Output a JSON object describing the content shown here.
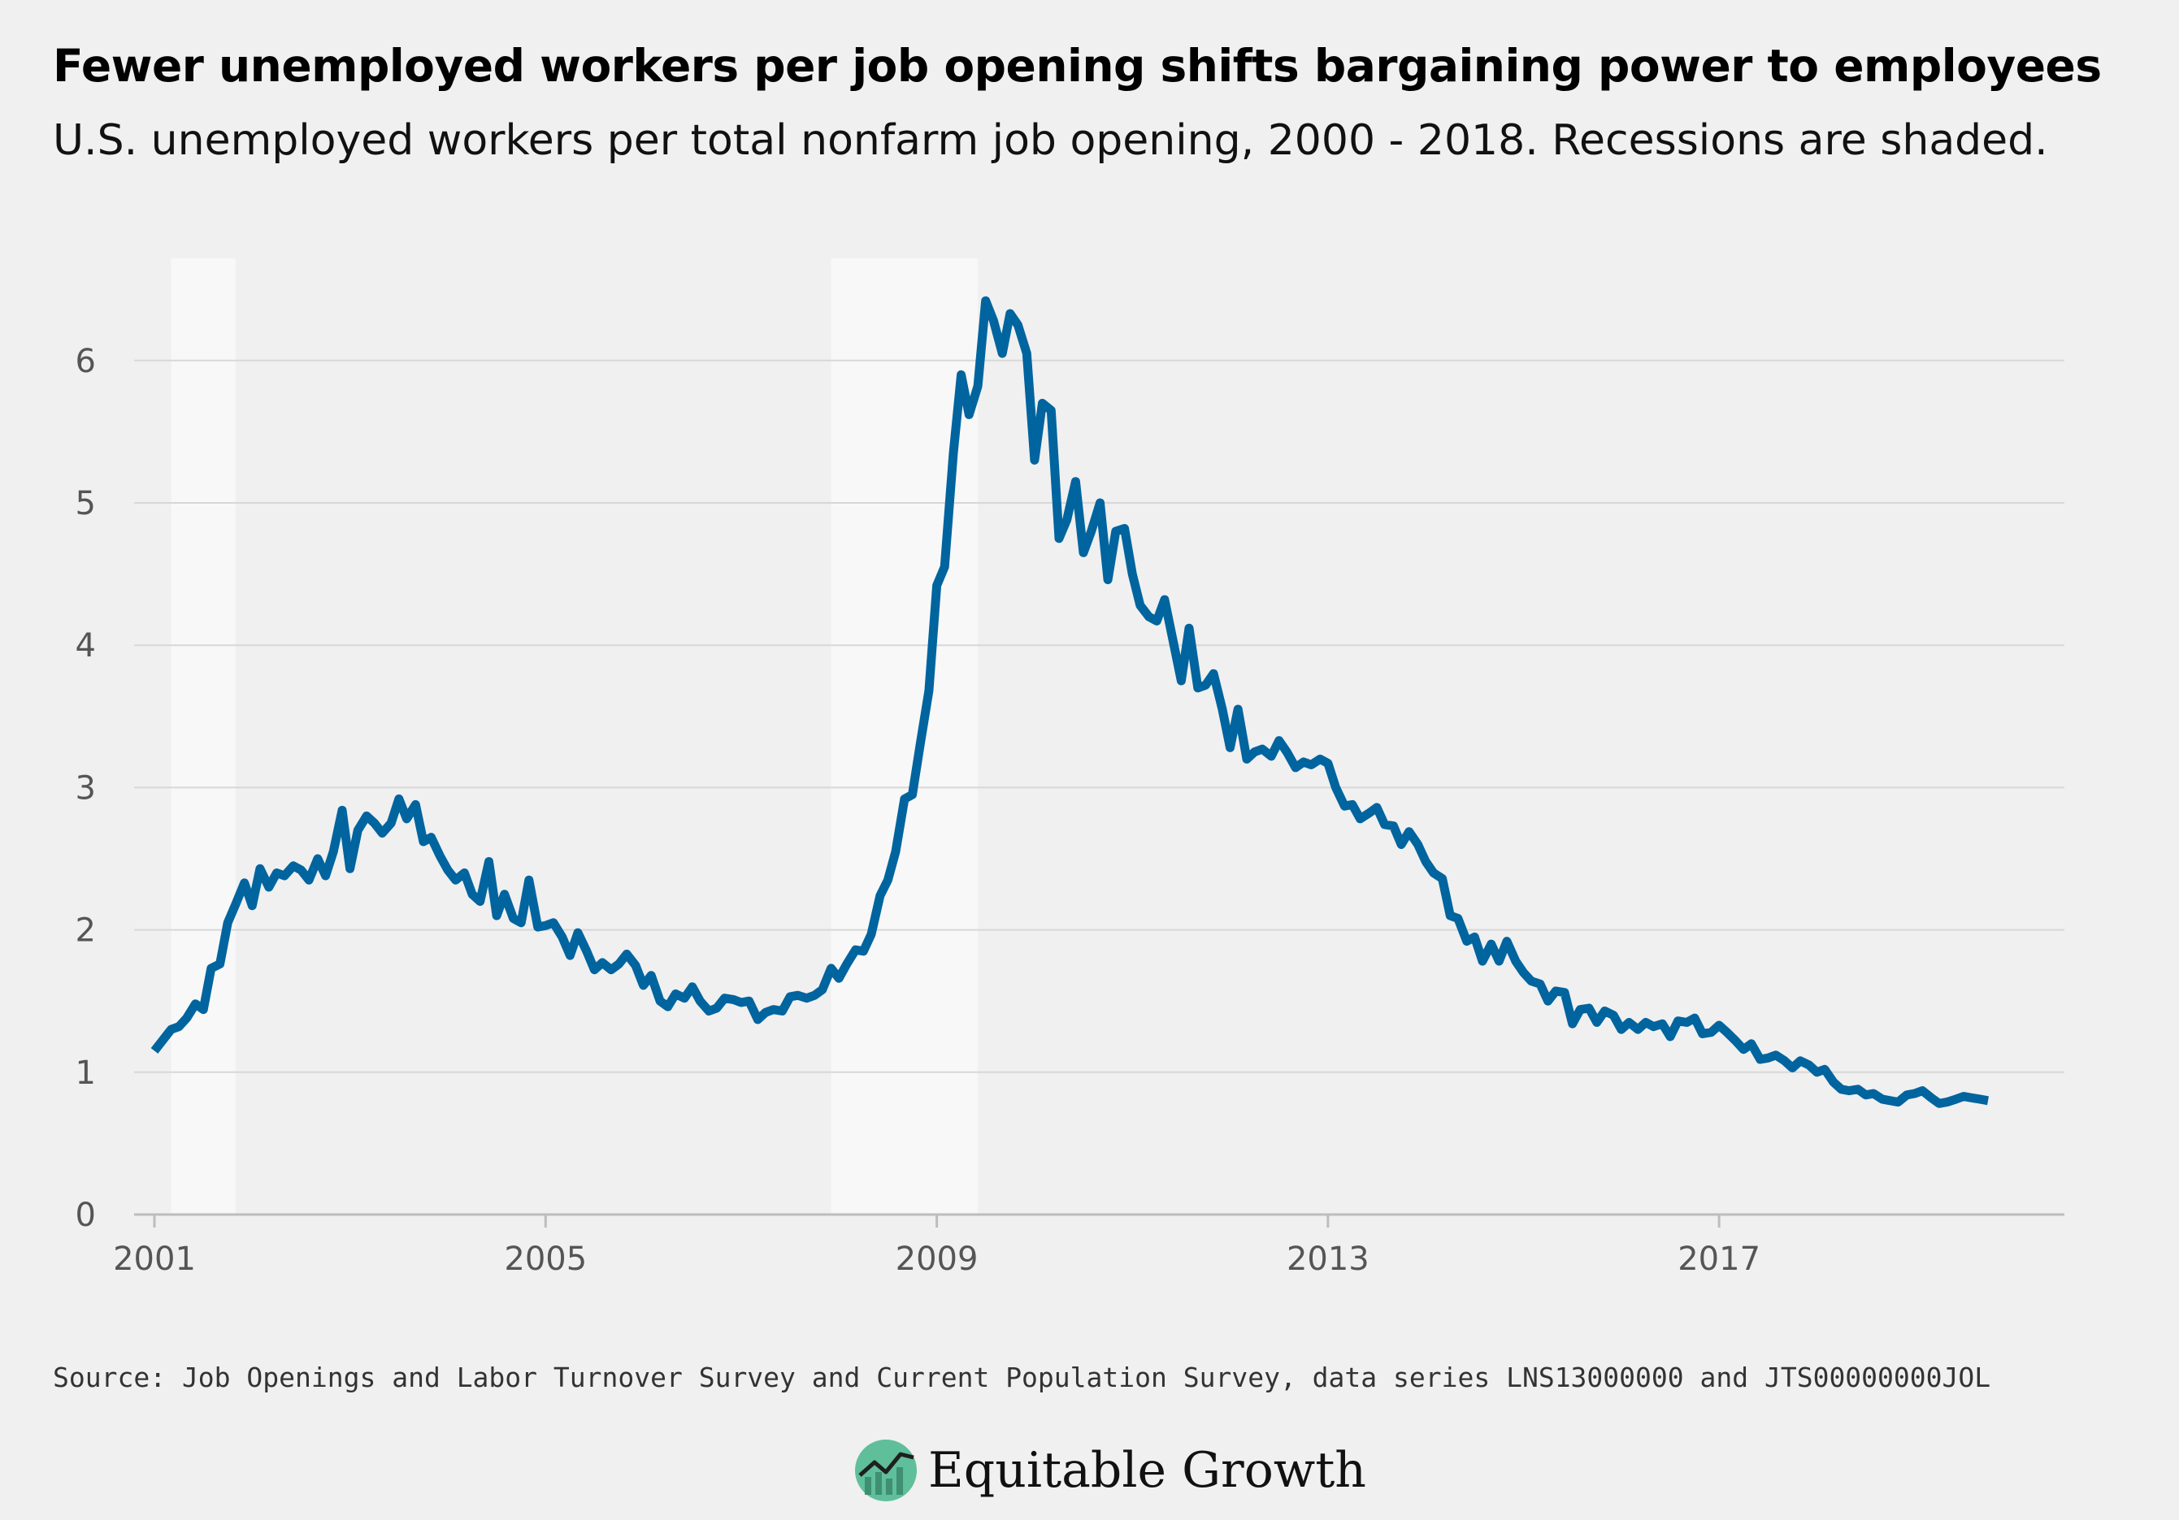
{
  "header": {
    "title": "Fewer unemployed workers per job opening shifts bargaining power to employees",
    "subtitle": "U.S. unemployed workers per total nonfarm job opening, 2000 - 2018. Recessions are shaded."
  },
  "footer": {
    "source": "Source: Job Openings and Labor Turnover Survey and Current Population Survey, data series LNS13000000 and JTS00000000JOL",
    "brand": "Equitable Growth"
  },
  "colors": {
    "line": "#00649f",
    "background": "#f0f0f0",
    "recession": "#f8f8f8",
    "grid": "#d7d7d7",
    "logo": "#5fbf9b"
  },
  "icons": {
    "brand_logo": "rising-line-chart-circle-icon"
  },
  "chart_data": {
    "type": "line",
    "title": "Fewer unemployed workers per job opening shifts bargaining power to employees",
    "subtitle": "U.S. unemployed workers per total nonfarm job opening, 2000 - 2018. Recessions are shaded.",
    "xlabel": "",
    "ylabel": "",
    "xlim": [
      2001.0,
      2019.7
    ],
    "ylim": [
      0,
      6.6
    ],
    "x_ticks": [
      2001,
      2005,
      2009,
      2013,
      2017
    ],
    "x_tick_labels": [
      "2001",
      "2005",
      "2009",
      "2013",
      "2017"
    ],
    "y_ticks": [
      0,
      1,
      2,
      3,
      4,
      5,
      6
    ],
    "y_tick_labels": [
      "0",
      "1",
      "2",
      "3",
      "4",
      "5",
      "6"
    ],
    "grid": "horizontal",
    "legend": "none",
    "recessions": [
      [
        2001.17,
        2001.83
      ],
      [
        2007.92,
        2009.42
      ]
    ],
    "series": [
      {
        "points": [
          [
            2001.0,
            1.15
          ],
          [
            2001.17,
            1.3
          ],
          [
            2001.25,
            1.32
          ],
          [
            2001.33,
            1.38
          ],
          [
            2001.42,
            1.48
          ],
          [
            2001.5,
            1.44
          ],
          [
            2001.58,
            1.73
          ],
          [
            2001.67,
            1.76
          ],
          [
            2001.75,
            2.05
          ],
          [
            2001.83,
            2.18
          ],
          [
            2001.92,
            2.33
          ],
          [
            2002.0,
            2.17
          ],
          [
            2002.08,
            2.43
          ],
          [
            2002.17,
            2.3
          ],
          [
            2002.25,
            2.4
          ],
          [
            2002.33,
            2.38
          ],
          [
            2002.42,
            2.45
          ],
          [
            2002.5,
            2.42
          ],
          [
            2002.58,
            2.35
          ],
          [
            2002.67,
            2.5
          ],
          [
            2002.75,
            2.38
          ],
          [
            2002.83,
            2.55
          ],
          [
            2002.92,
            2.84
          ],
          [
            2003.0,
            2.43
          ],
          [
            2003.08,
            2.7
          ],
          [
            2003.17,
            2.8
          ],
          [
            2003.25,
            2.75
          ],
          [
            2003.33,
            2.68
          ],
          [
            2003.42,
            2.75
          ],
          [
            2003.5,
            2.92
          ],
          [
            2003.58,
            2.78
          ],
          [
            2003.67,
            2.88
          ],
          [
            2003.75,
            2.62
          ],
          [
            2003.83,
            2.65
          ],
          [
            2003.92,
            2.52
          ],
          [
            2004.0,
            2.42
          ],
          [
            2004.08,
            2.35
          ],
          [
            2004.17,
            2.4
          ],
          [
            2004.25,
            2.25
          ],
          [
            2004.33,
            2.2
          ],
          [
            2004.42,
            2.48
          ],
          [
            2004.5,
            2.1
          ],
          [
            2004.58,
            2.25
          ],
          [
            2004.67,
            2.08
          ],
          [
            2004.75,
            2.05
          ],
          [
            2004.83,
            2.35
          ],
          [
            2004.92,
            2.02
          ],
          [
            2005.0,
            2.03
          ],
          [
            2005.08,
            2.05
          ],
          [
            2005.17,
            1.95
          ],
          [
            2005.25,
            1.82
          ],
          [
            2005.33,
            1.98
          ],
          [
            2005.42,
            1.85
          ],
          [
            2005.5,
            1.72
          ],
          [
            2005.58,
            1.77
          ],
          [
            2005.67,
            1.72
          ],
          [
            2005.75,
            1.76
          ],
          [
            2005.83,
            1.83
          ],
          [
            2005.92,
            1.75
          ],
          [
            2006.0,
            1.61
          ],
          [
            2006.08,
            1.68
          ],
          [
            2006.17,
            1.5
          ],
          [
            2006.25,
            1.46
          ],
          [
            2006.33,
            1.55
          ],
          [
            2006.42,
            1.52
          ],
          [
            2006.5,
            1.6
          ],
          [
            2006.58,
            1.5
          ],
          [
            2006.67,
            1.43
          ],
          [
            2006.75,
            1.45
          ],
          [
            2006.83,
            1.52
          ],
          [
            2006.92,
            1.51
          ],
          [
            2007.0,
            1.49
          ],
          [
            2007.08,
            1.5
          ],
          [
            2007.17,
            1.37
          ],
          [
            2007.25,
            1.42
          ],
          [
            2007.33,
            1.44
          ],
          [
            2007.42,
            1.43
          ],
          [
            2007.5,
            1.53
          ],
          [
            2007.58,
            1.54
          ],
          [
            2007.67,
            1.52
          ],
          [
            2007.75,
            1.54
          ],
          [
            2007.83,
            1.58
          ],
          [
            2007.92,
            1.73
          ],
          [
            2008.0,
            1.66
          ],
          [
            2008.08,
            1.76
          ],
          [
            2008.17,
            1.86
          ],
          [
            2008.25,
            1.85
          ],
          [
            2008.33,
            1.97
          ],
          [
            2008.42,
            2.24
          ],
          [
            2008.5,
            2.35
          ],
          [
            2008.58,
            2.55
          ],
          [
            2008.67,
            2.92
          ],
          [
            2008.75,
            2.95
          ],
          [
            2008.83,
            3.3
          ],
          [
            2008.92,
            3.68
          ],
          [
            2009.0,
            4.42
          ],
          [
            2009.08,
            4.55
          ],
          [
            2009.17,
            5.35
          ],
          [
            2009.25,
            5.9
          ],
          [
            2009.33,
            5.62
          ],
          [
            2009.42,
            5.82
          ],
          [
            2009.5,
            6.42
          ],
          [
            2009.58,
            6.28
          ],
          [
            2009.67,
            6.05
          ],
          [
            2009.75,
            6.33
          ],
          [
            2009.83,
            6.25
          ],
          [
            2009.92,
            6.05
          ],
          [
            2010.0,
            5.3
          ],
          [
            2010.08,
            5.7
          ],
          [
            2010.17,
            5.65
          ],
          [
            2010.25,
            4.75
          ],
          [
            2010.33,
            4.88
          ],
          [
            2010.42,
            5.15
          ],
          [
            2010.5,
            4.65
          ],
          [
            2010.58,
            4.8
          ],
          [
            2010.67,
            5.0
          ],
          [
            2010.75,
            4.46
          ],
          [
            2010.83,
            4.8
          ],
          [
            2010.92,
            4.82
          ],
          [
            2011.0,
            4.5
          ],
          [
            2011.08,
            4.28
          ],
          [
            2011.17,
            4.2
          ],
          [
            2011.25,
            4.17
          ],
          [
            2011.33,
            4.32
          ],
          [
            2011.42,
            4.02
          ],
          [
            2011.5,
            3.75
          ],
          [
            2011.58,
            4.12
          ],
          [
            2011.67,
            3.7
          ],
          [
            2011.75,
            3.72
          ],
          [
            2011.83,
            3.8
          ],
          [
            2011.92,
            3.55
          ],
          [
            2012.0,
            3.28
          ],
          [
            2012.08,
            3.55
          ],
          [
            2012.17,
            3.2
          ],
          [
            2012.25,
            3.25
          ],
          [
            2012.33,
            3.27
          ],
          [
            2012.42,
            3.22
          ],
          [
            2012.5,
            3.33
          ],
          [
            2012.58,
            3.25
          ],
          [
            2012.67,
            3.14
          ],
          [
            2012.75,
            3.18
          ],
          [
            2012.83,
            3.16
          ],
          [
            2012.92,
            3.2
          ],
          [
            2013.0,
            3.17
          ],
          [
            2013.08,
            3.0
          ],
          [
            2013.17,
            2.87
          ],
          [
            2013.25,
            2.88
          ],
          [
            2013.33,
            2.78
          ],
          [
            2013.42,
            2.82
          ],
          [
            2013.5,
            2.86
          ],
          [
            2013.58,
            2.74
          ],
          [
            2013.67,
            2.73
          ],
          [
            2013.75,
            2.6
          ],
          [
            2013.83,
            2.69
          ],
          [
            2013.92,
            2.6
          ],
          [
            2014.0,
            2.48
          ],
          [
            2014.08,
            2.4
          ],
          [
            2014.17,
            2.36
          ],
          [
            2014.25,
            2.1
          ],
          [
            2014.33,
            2.08
          ],
          [
            2014.42,
            1.92
          ],
          [
            2014.5,
            1.95
          ],
          [
            2014.58,
            1.78
          ],
          [
            2014.67,
            1.9
          ],
          [
            2014.75,
            1.78
          ],
          [
            2014.83,
            1.92
          ],
          [
            2014.92,
            1.78
          ],
          [
            2015.0,
            1.7
          ],
          [
            2015.08,
            1.64
          ],
          [
            2015.17,
            1.62
          ],
          [
            2015.25,
            1.5
          ],
          [
            2015.33,
            1.57
          ],
          [
            2015.42,
            1.56
          ],
          [
            2015.5,
            1.34
          ],
          [
            2015.58,
            1.44
          ],
          [
            2015.67,
            1.45
          ],
          [
            2015.75,
            1.35
          ],
          [
            2015.83,
            1.43
          ],
          [
            2015.92,
            1.4
          ],
          [
            2016.0,
            1.3
          ],
          [
            2016.08,
            1.35
          ],
          [
            2016.17,
            1.3
          ],
          [
            2016.25,
            1.35
          ],
          [
            2016.33,
            1.32
          ],
          [
            2016.42,
            1.34
          ],
          [
            2016.5,
            1.25
          ],
          [
            2016.58,
            1.36
          ],
          [
            2016.67,
            1.35
          ],
          [
            2016.75,
            1.38
          ],
          [
            2016.83,
            1.27
          ],
          [
            2016.92,
            1.28
          ],
          [
            2017.0,
            1.33
          ],
          [
            2017.08,
            1.28
          ],
          [
            2017.17,
            1.22
          ],
          [
            2017.25,
            1.16
          ],
          [
            2017.33,
            1.2
          ],
          [
            2017.42,
            1.09
          ],
          [
            2017.5,
            1.1
          ],
          [
            2017.58,
            1.12
          ],
          [
            2017.67,
            1.08
          ],
          [
            2017.75,
            1.03
          ],
          [
            2017.83,
            1.08
          ],
          [
            2017.92,
            1.05
          ],
          [
            2018.0,
            1.0
          ],
          [
            2018.08,
            1.02
          ],
          [
            2018.17,
            0.93
          ],
          [
            2018.25,
            0.88
          ],
          [
            2018.33,
            0.87
          ],
          [
            2018.42,
            0.88
          ],
          [
            2018.5,
            0.84
          ],
          [
            2018.58,
            0.85
          ],
          [
            2018.67,
            0.81
          ],
          [
            2018.75,
            0.8
          ],
          [
            2018.83,
            0.79
          ],
          [
            2018.92,
            0.84
          ],
          [
            2019.0,
            0.85
          ],
          [
            2019.08,
            0.87
          ],
          [
            2019.17,
            0.82
          ],
          [
            2019.25,
            0.78
          ],
          [
            2019.33,
            0.79
          ],
          [
            2019.42,
            0.81
          ],
          [
            2019.5,
            0.83
          ],
          [
            2019.58,
            0.82
          ],
          [
            2019.67,
            0.81
          ],
          [
            2019.75,
            0.8
          ]
        ]
      }
    ]
  }
}
